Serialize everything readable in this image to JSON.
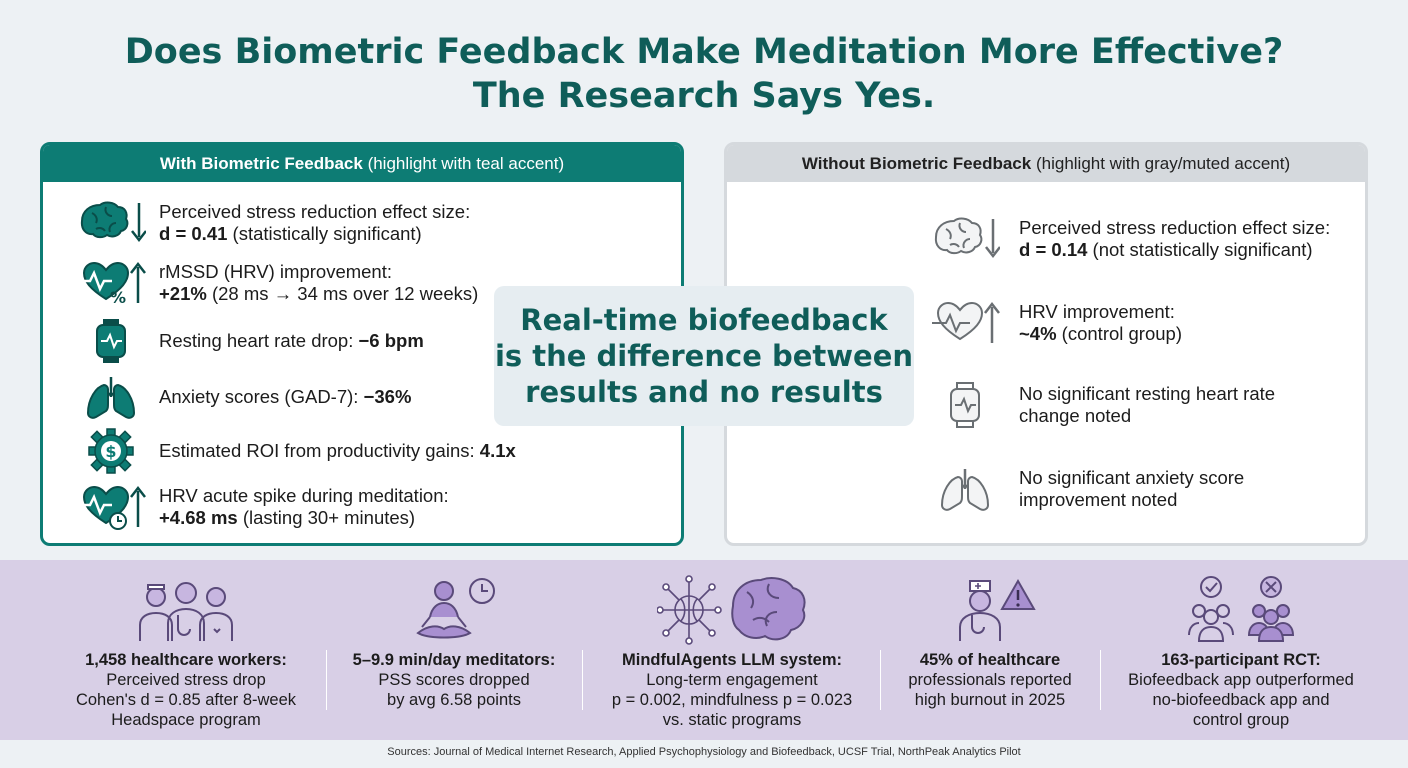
{
  "title": {
    "line1": "Does Biometric Feedback Make Meditation More Effective?",
    "line2": "The Research Says Yes."
  },
  "with_panel": {
    "heading_bold": "With Biometric Feedback",
    "heading_note": "(highlight with teal accent)",
    "items": [
      {
        "icon": "brain-down-icon",
        "line1": "Perceived stress reduction effect size:",
        "bold": "d = 0.41",
        "rest": " (statistically significant)"
      },
      {
        "icon": "heart-percent-up-icon",
        "line1": "rMSSD (HRV) improvement:",
        "bold": "+21%",
        "rest": " (28 ms → 34 ms over 12 weeks)"
      },
      {
        "icon": "smartwatch-icon",
        "label": "Resting heart rate drop: ",
        "bold": "−6 bpm"
      },
      {
        "icon": "lungs-icon",
        "label": "Anxiety scores (GAD-7): ",
        "bold": "−36%"
      },
      {
        "icon": "gear-dollar-icon",
        "label": "Estimated ROI from productivity gains: ",
        "bold": "4.1x"
      },
      {
        "icon": "heart-clock-up-icon",
        "line1": "HRV acute spike during meditation:",
        "bold": "+4.68 ms",
        "rest": " (lasting 30+ minutes)"
      }
    ]
  },
  "without_panel": {
    "heading_bold": "Without Biometric Feedback",
    "heading_note": "(highlight with gray/muted accent)",
    "items": [
      {
        "icon": "brain-down-icon",
        "line1": "Perceived stress reduction effect size:",
        "bold": "d = 0.14",
        "rest": " (not statistically significant)"
      },
      {
        "icon": "heart-up-icon",
        "line1": "HRV improvement:",
        "bold": "~4%",
        "rest": " (control group)"
      },
      {
        "icon": "smartwatch-icon",
        "line1": "No significant resting heart rate",
        "line2": "change noted"
      },
      {
        "icon": "lungs-icon",
        "line1": "No significant anxiety score",
        "line2": "improvement noted"
      }
    ]
  },
  "callout": {
    "line1": "Real-time biofeedback",
    "line2": "is the difference between",
    "line3": "results and no results"
  },
  "stats": [
    {
      "icon": "healthcare-workers-icon",
      "bold": "1,458 healthcare workers:",
      "lines": [
        "Perceived stress drop",
        "Cohen's d = 0.85 after 8-week",
        "Headspace program"
      ]
    },
    {
      "icon": "meditator-clock-icon",
      "bold": "5–9.9 min/day meditators:",
      "lines": [
        "PSS scores dropped",
        "by avg 6.58 points"
      ]
    },
    {
      "icon": "network-brain-icon",
      "bold": "MindfulAgents LLM system:",
      "lines": [
        "Long-term engagement",
        "p = 0.002, mindfulness p = 0.023",
        "vs. static programs"
      ]
    },
    {
      "icon": "nurse-warning-icon",
      "bold": "45% of healthcare",
      "lines": [
        "professionals reported",
        "high burnout in 2025"
      ]
    },
    {
      "icon": "group-check-cross-icon",
      "bold": "163-participant RCT:",
      "lines": [
        "Biofeedback app outperformed",
        "no-biofeedback app and",
        "control group"
      ]
    }
  ],
  "sources": "Sources: Journal of Medical Internet Research, Applied Psychophysiology and Biofeedback, UCSF Trial, NorthPeak Analytics Pilot",
  "colors": {
    "teal": "#0d7c74",
    "title": "#0f5d59",
    "muted": "#d5d9dd",
    "lavender": "#d8cfe6",
    "purple_icon": "#8a6fb0"
  }
}
